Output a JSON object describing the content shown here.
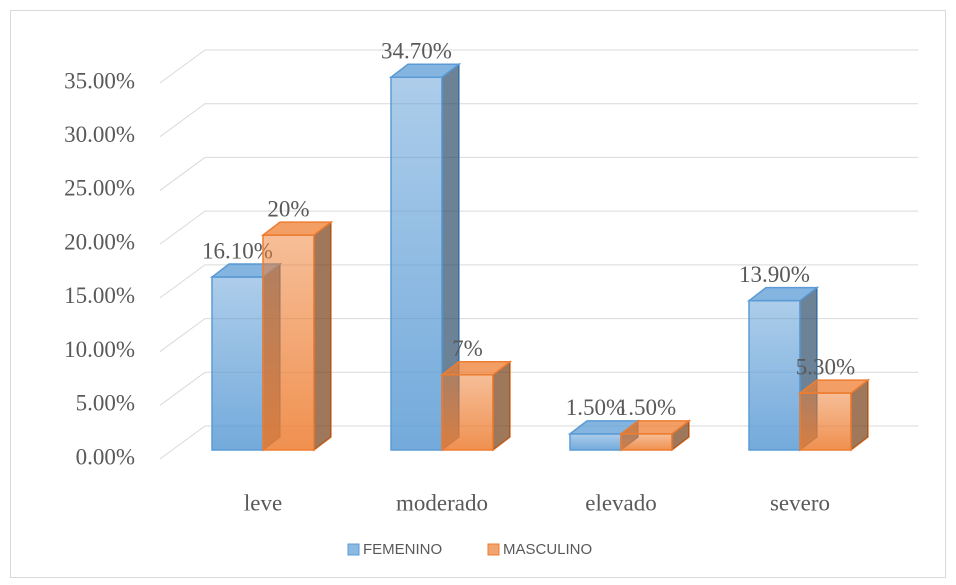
{
  "chart_data": {
    "type": "bar3d",
    "categories": [
      "leve",
      "moderado",
      "elevado",
      "severo"
    ],
    "series": [
      {
        "name": "FEMENINO",
        "color": "#5b9bd5",
        "values": [
          16.1,
          34.7,
          1.5,
          13.9
        ],
        "value_labels": [
          "16.10%",
          "34.70%",
          "1.50%",
          "13.90%"
        ]
      },
      {
        "name": "MASCULINO",
        "color": "#ed7d31",
        "values": [
          20,
          7,
          1.5,
          5.3
        ],
        "value_labels": [
          "20%",
          "7%",
          "1.50%",
          "5.30%"
        ]
      }
    ],
    "ylim": [
      0,
      35
    ],
    "yticks": [
      {
        "value": 0,
        "label": "0.00%"
      },
      {
        "value": 5,
        "label": "5.00%"
      },
      {
        "value": 10,
        "label": "10.00%"
      },
      {
        "value": 15,
        "label": "15.00%"
      },
      {
        "value": 20,
        "label": "20.00%"
      },
      {
        "value": 25,
        "label": "25.00%"
      },
      {
        "value": 30,
        "label": "30.00%"
      },
      {
        "value": 35,
        "label": "35.00%"
      }
    ],
    "grid": true,
    "legend": "bottom"
  }
}
